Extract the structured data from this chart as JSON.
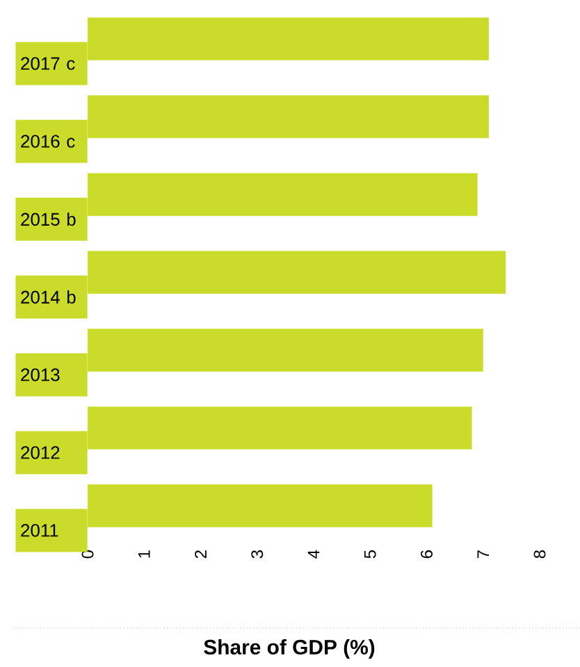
{
  "chart_data": {
    "type": "bar",
    "orientation": "horizontal",
    "xlabel": "**Share of GDP (%)**",
    "categories": [
      "2017 c",
      "2016 c",
      "2015 b",
      "2014 b",
      "2013",
      "2012",
      "2011"
    ],
    "values": [
      7.1,
      7.1,
      6.9,
      7.4,
      7.0,
      6.8,
      6.1
    ],
    "color": "#cadb2a",
    "xlim": [
      0,
      8
    ],
    "xticks": [
      0,
      1,
      2,
      3,
      4,
      5,
      6,
      7,
      8
    ]
  }
}
